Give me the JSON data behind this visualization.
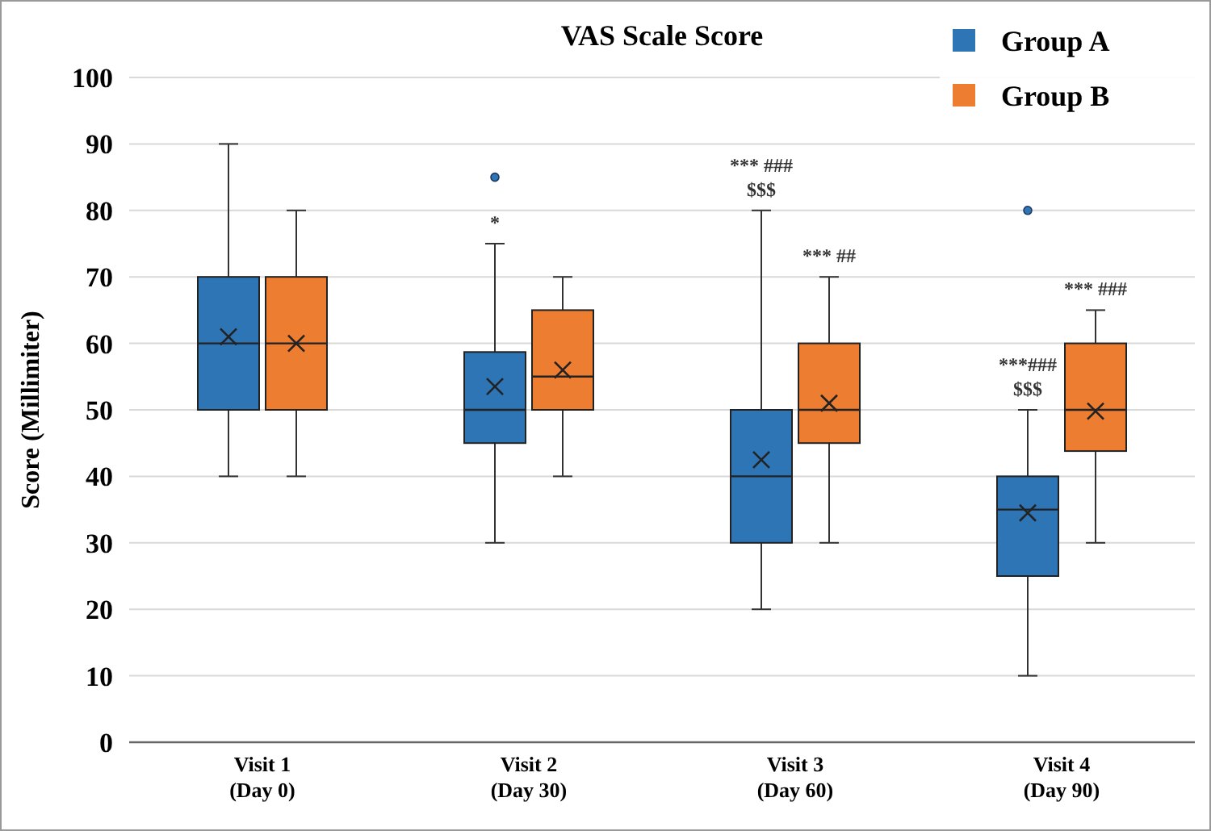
{
  "chart_data": {
    "type": "box",
    "title": "VAS Scale Score",
    "ylabel": "Score (Millimiter)",
    "categories": [
      "Visit 1\n(Day 0)",
      "Visit 2\n(Day 30)",
      "Visit 3\n(Day 60)",
      "Visit 4\n(Day 90)"
    ],
    "ylim": [
      0,
      100
    ],
    "yticks": [
      0,
      10,
      20,
      30,
      40,
      50,
      60,
      70,
      80,
      90,
      100
    ],
    "grid": "y",
    "legend": "top right",
    "marker": "cross",
    "series": [
      {
        "name": "Group A",
        "color": "#2e75b6",
        "boxes": [
          {
            "low": 40,
            "q1": 50,
            "median": 60,
            "q3": 70,
            "high": 90,
            "mean": 61
          },
          {
            "low": 30,
            "q1": 45,
            "median": 50,
            "q3": 58.7,
            "high": 75,
            "mean": 53.5,
            "outliers": [
              85
            ]
          },
          {
            "low": 20,
            "q1": 30,
            "median": 40,
            "q3": 50,
            "high": 80,
            "mean": 42.5
          },
          {
            "low": 10,
            "q1": 25,
            "median": 35,
            "q3": 40,
            "high": 50,
            "mean": 34.5,
            "outliers": [
              80
            ]
          }
        ]
      },
      {
        "name": "Group B",
        "color": "#ed7d31",
        "boxes": [
          {
            "low": 40,
            "q1": 50,
            "median": 60,
            "q3": 70,
            "high": 80,
            "mean": 60
          },
          {
            "low": 40,
            "q1": 50,
            "median": 55,
            "q3": 65,
            "high": 70,
            "mean": 56
          },
          {
            "low": 30,
            "q1": 45,
            "median": 50,
            "q3": 60,
            "high": 70,
            "mean": 51
          },
          {
            "low": 30,
            "q1": 43.8,
            "median": 50,
            "q3": 60,
            "high": 65,
            "mean": 49.8
          }
        ]
      }
    ],
    "annotations": [
      "*",
      "*** ###",
      "$$$",
      "*** ##",
      "***###",
      "$$$",
      "*** ###"
    ]
  }
}
